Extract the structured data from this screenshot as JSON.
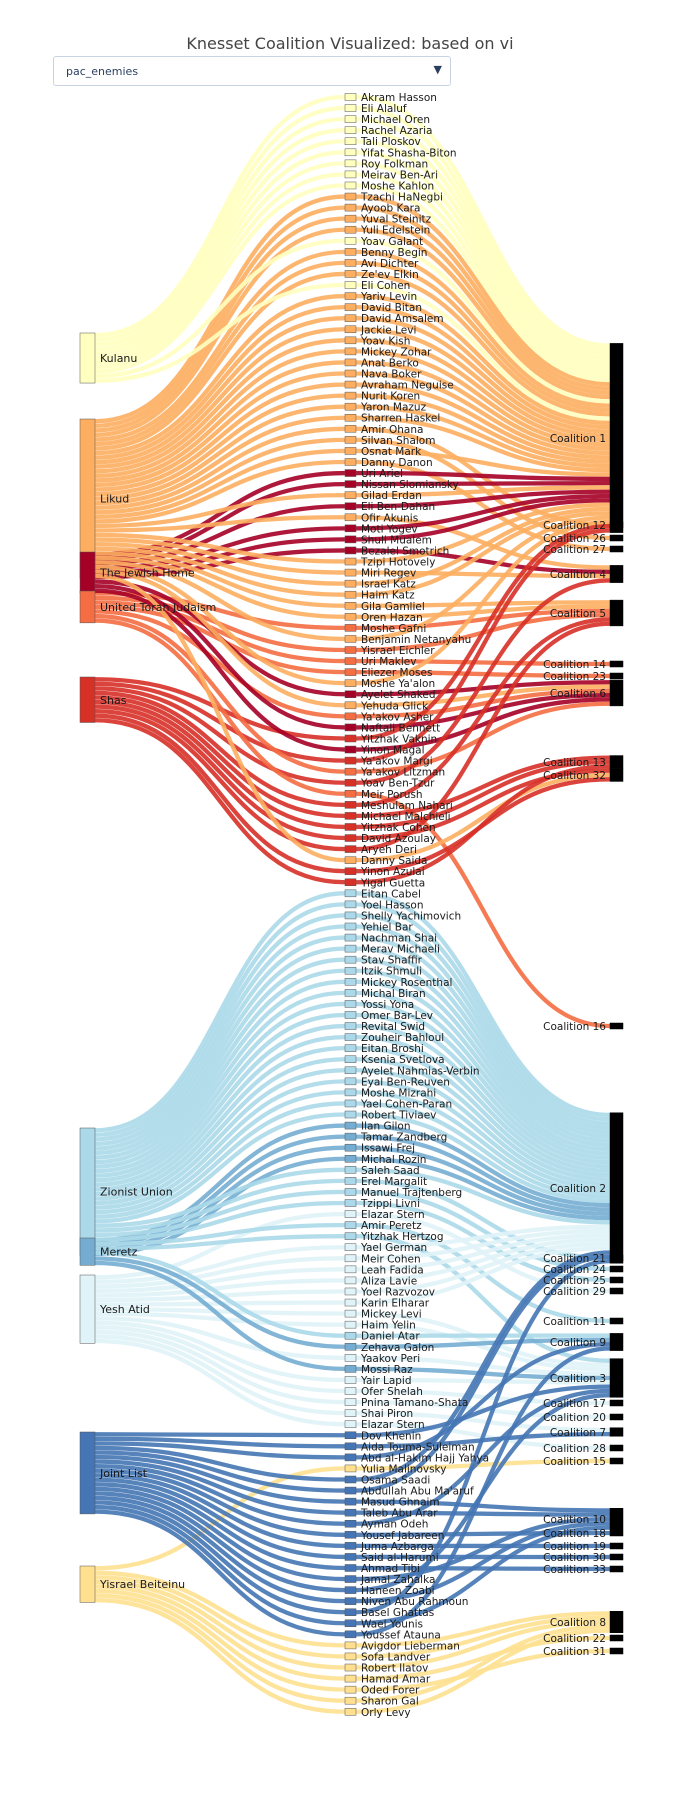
{
  "title": "Knesset Coalition Visualized: based on vi",
  "dropdown": {
    "value": "pac_enemies",
    "arrow": "▼"
  },
  "colors": {
    "Kulanu": "#ffffbf",
    "Likud": "#fdae61",
    "The Jewish Home": "#a50026",
    "United Torah Judaism": "#f46d43",
    "Shas": "#d73027",
    "Zionist Union": "#abd9e9",
    "Meretz": "#74add1",
    "Yesh Atid": "#e0f3f8",
    "Joint List": "#4575b4",
    "Yisrael Beiteinu": "#fee090"
  },
  "parties": [
    "Kulanu",
    "Likud",
    "The Jewish Home",
    "United Torah Judaism",
    "Shas",
    "Zionist Union",
    "Meretz",
    "Yesh Atid",
    "Joint List",
    "Yisrael Beiteinu"
  ],
  "members": [
    {
      "name": "Akram Hasson",
      "party": "Kulanu",
      "coalition": "Coalition 1"
    },
    {
      "name": "Eli Alaluf",
      "party": "Kulanu",
      "coalition": "Coalition 1"
    },
    {
      "name": "Michael Oren",
      "party": "Kulanu",
      "coalition": "Coalition 1"
    },
    {
      "name": "Rachel Azaria",
      "party": "Kulanu",
      "coalition": "Coalition 1"
    },
    {
      "name": "Tali Ploskov",
      "party": "Kulanu",
      "coalition": "Coalition 1"
    },
    {
      "name": "Yifat Shasha-Biton",
      "party": "Kulanu",
      "coalition": "Coalition 1"
    },
    {
      "name": "Roy Folkman",
      "party": "Kulanu",
      "coalition": "Coalition 1"
    },
    {
      "name": "Meirav Ben-Ari",
      "party": "Kulanu",
      "coalition": "Coalition 1"
    },
    {
      "name": "Moshe Kahlon",
      "party": "Kulanu",
      "coalition": "Coalition 1"
    },
    {
      "name": "Tzachi HaNegbi",
      "party": "Likud",
      "coalition": "Coalition 1"
    },
    {
      "name": "Ayoob Kara",
      "party": "Likud",
      "coalition": "Coalition 1"
    },
    {
      "name": "Yuval Steinitz",
      "party": "Likud",
      "coalition": "Coalition 1"
    },
    {
      "name": "Yuli Edelstein",
      "party": "Likud",
      "coalition": "Coalition 1"
    },
    {
      "name": "Yoav Galant",
      "party": "Kulanu",
      "coalition": "Coalition 1"
    },
    {
      "name": "Benny Begin",
      "party": "Likud",
      "coalition": "Coalition 1"
    },
    {
      "name": "Avi Dichter",
      "party": "Likud",
      "coalition": "Coalition 1"
    },
    {
      "name": "Ze'ev Elkin",
      "party": "Likud",
      "coalition": "Coalition 1"
    },
    {
      "name": "Eli Cohen",
      "party": "Kulanu",
      "coalition": "Coalition 1"
    },
    {
      "name": "Yariv Levin",
      "party": "Likud",
      "coalition": "Coalition 1"
    },
    {
      "name": "David Bitan",
      "party": "Likud",
      "coalition": "Coalition 1"
    },
    {
      "name": "David Amsalem",
      "party": "Likud",
      "coalition": "Coalition 1"
    },
    {
      "name": "Jackie Levi",
      "party": "Likud",
      "coalition": "Coalition 1"
    },
    {
      "name": "Yoav Kish",
      "party": "Likud",
      "coalition": "Coalition 1"
    },
    {
      "name": "Mickey Zohar",
      "party": "Likud",
      "coalition": "Coalition 1"
    },
    {
      "name": "Anat Berko",
      "party": "Likud",
      "coalition": "Coalition 1"
    },
    {
      "name": "Nava Boker",
      "party": "Likud",
      "coalition": "Coalition 1"
    },
    {
      "name": "Avraham Neguise",
      "party": "Likud",
      "coalition": "Coalition 1"
    },
    {
      "name": "Nurit Koren",
      "party": "Likud",
      "coalition": "Coalition 1"
    },
    {
      "name": "Yaron Mazuz",
      "party": "Likud",
      "coalition": "Coalition 1"
    },
    {
      "name": "Sharren Haskel",
      "party": "Likud",
      "coalition": "Coalition 1"
    },
    {
      "name": "Amir Ohana",
      "party": "Likud",
      "coalition": "Coalition 12"
    },
    {
      "name": "Silvan Shalom",
      "party": "Likud",
      "coalition": "Coalition 26"
    },
    {
      "name": "Osnat Mark",
      "party": "Likud",
      "coalition": "Coalition 1"
    },
    {
      "name": "Danny Danon",
      "party": "Likud",
      "coalition": "Coalition 27"
    },
    {
      "name": "Uri Ariel",
      "party": "The Jewish Home",
      "coalition": "Coalition 1"
    },
    {
      "name": "Nissan Slomiansky",
      "party": "The Jewish Home",
      "coalition": "Coalition 1"
    },
    {
      "name": "Gilad Erdan",
      "party": "Likud",
      "coalition": "Coalition 1"
    },
    {
      "name": "Eli Ben-Dahan",
      "party": "The Jewish Home",
      "coalition": "Coalition 1"
    },
    {
      "name": "Ofir Akunis",
      "party": "Likud",
      "coalition": "Coalition 4"
    },
    {
      "name": "Moti Yogev",
      "party": "The Jewish Home",
      "coalition": "Coalition 1"
    },
    {
      "name": "Shuli Mualem",
      "party": "The Jewish Home",
      "coalition": "Coalition 1"
    },
    {
      "name": "Bezalel Smotrich",
      "party": "The Jewish Home",
      "coalition": "Coalition 4"
    },
    {
      "name": "Tzipi Hotovely",
      "party": "Likud",
      "coalition": "Coalition 1"
    },
    {
      "name": "Miri Regev",
      "party": "Likud",
      "coalition": "Coalition 4"
    },
    {
      "name": "Israel Katz",
      "party": "Likud",
      "coalition": "Coalition 1"
    },
    {
      "name": "Haim Katz",
      "party": "Likud",
      "coalition": "Coalition 1"
    },
    {
      "name": "Gila Gamliel",
      "party": "Likud",
      "coalition": "Coalition 5"
    },
    {
      "name": "Oren Hazan",
      "party": "Likud",
      "coalition": "Coalition 5"
    },
    {
      "name": "Moshe Gafni",
      "party": "United Torah Judaism",
      "coalition": "Coalition 5"
    },
    {
      "name": "Benjamin Netanyahu",
      "party": "Likud",
      "coalition": "Coalition 1"
    },
    {
      "name": "Yisrael Eichler",
      "party": "United Torah Judaism",
      "coalition": "Coalition 5"
    },
    {
      "name": "Uri Maklev",
      "party": "United Torah Judaism",
      "coalition": "Coalition 14"
    },
    {
      "name": "Eliezer Moses",
      "party": "United Torah Judaism",
      "coalition": "Coalition 23"
    },
    {
      "name": "Moshe Ya'alon",
      "party": "Likud",
      "coalition": "Coalition 1"
    },
    {
      "name": "Ayelet Shaked",
      "party": "The Jewish Home",
      "coalition": "Coalition 6"
    },
    {
      "name": "Yehuda Glick",
      "party": "Likud",
      "coalition": "Coalition 6"
    },
    {
      "name": "Ya'akov Asher",
      "party": "United Torah Judaism",
      "coalition": "Coalition 6"
    },
    {
      "name": "Naftali Bennett",
      "party": "The Jewish Home",
      "coalition": "Coalition 6"
    },
    {
      "name": "Yitzhak Vaknin",
      "party": "Shas",
      "coalition": "Coalition 1"
    },
    {
      "name": "Yinon Magal",
      "party": "The Jewish Home",
      "coalition": "Coalition 6"
    },
    {
      "name": "Ya'akov Margi",
      "party": "Shas",
      "coalition": "Coalition 1"
    },
    {
      "name": "Ya'akov Litzman",
      "party": "United Torah Judaism",
      "coalition": "Coalition 6"
    },
    {
      "name": "Yoav Ben-Tzur",
      "party": "Shas",
      "coalition": "Coalition 4"
    },
    {
      "name": "Meir Porush",
      "party": "United Torah Judaism",
      "coalition": "Coalition 16"
    },
    {
      "name": "Meshulam Nahari",
      "party": "Shas",
      "coalition": "Coalition 5"
    },
    {
      "name": "Michael Malchieli",
      "party": "Shas",
      "coalition": "Coalition 13"
    },
    {
      "name": "Yitzhak Cohen",
      "party": "Shas",
      "coalition": "Coalition 13"
    },
    {
      "name": "David Azoulay",
      "party": "Shas",
      "coalition": "Coalition 32"
    },
    {
      "name": "Aryeh Deri",
      "party": "Shas",
      "coalition": "Coalition 5"
    },
    {
      "name": "Danny Saida",
      "party": "Likud",
      "coalition": "Coalition 32"
    },
    {
      "name": "Yinon Azulai",
      "party": "Shas",
      "coalition": "Coalition 32"
    },
    {
      "name": "Yigal Guetta",
      "party": "Shas",
      "coalition": "Coalition 13"
    },
    {
      "name": "Eitan Cabel",
      "party": "Zionist Union",
      "coalition": "Coalition 2"
    },
    {
      "name": "Yoel Hasson",
      "party": "Zionist Union",
      "coalition": "Coalition 2"
    },
    {
      "name": "Shelly Yachimovich",
      "party": "Zionist Union",
      "coalition": "Coalition 2"
    },
    {
      "name": "Yehiel Bar",
      "party": "Zionist Union",
      "coalition": "Coalition 2"
    },
    {
      "name": "Nachman Shai",
      "party": "Zionist Union",
      "coalition": "Coalition 2"
    },
    {
      "name": "Merav Michaeli",
      "party": "Zionist Union",
      "coalition": "Coalition 2"
    },
    {
      "name": "Stav Shaffir",
      "party": "Zionist Union",
      "coalition": "Coalition 2"
    },
    {
      "name": "Itzik Shmuli",
      "party": "Zionist Union",
      "coalition": "Coalition 2"
    },
    {
      "name": "Mickey Rosenthal",
      "party": "Zionist Union",
      "coalition": "Coalition 2"
    },
    {
      "name": "Michal Biran",
      "party": "Zionist Union",
      "coalition": "Coalition 2"
    },
    {
      "name": "Yossi Yona",
      "party": "Zionist Union",
      "coalition": "Coalition 2"
    },
    {
      "name": "Omer Bar-Lev",
      "party": "Zionist Union",
      "coalition": "Coalition 2"
    },
    {
      "name": "Revital Swid",
      "party": "Zionist Union",
      "coalition": "Coalition 2"
    },
    {
      "name": "Zouheir Bahloul",
      "party": "Zionist Union",
      "coalition": "Coalition 2"
    },
    {
      "name": "Eitan Broshi",
      "party": "Zionist Union",
      "coalition": "Coalition 2"
    },
    {
      "name": "Ksenia Svetlova",
      "party": "Zionist Union",
      "coalition": "Coalition 2"
    },
    {
      "name": "Ayelet Nahmias-Verbin",
      "party": "Zionist Union",
      "coalition": "Coalition 2"
    },
    {
      "name": "Eyal Ben-Reuven",
      "party": "Zionist Union",
      "coalition": "Coalition 2"
    },
    {
      "name": "Moshe Mizrahi",
      "party": "Zionist Union",
      "coalition": "Coalition 2"
    },
    {
      "name": "Yael Cohen-Paran",
      "party": "Zionist Union",
      "coalition": "Coalition 2"
    },
    {
      "name": "Robert Tiviaev",
      "party": "Zionist Union",
      "coalition": "Coalition 2"
    },
    {
      "name": "Ilan Gilon",
      "party": "Meretz",
      "coalition": "Coalition 2"
    },
    {
      "name": "Tamar Zandberg",
      "party": "Meretz",
      "coalition": "Coalition 2"
    },
    {
      "name": "Issawi Frej",
      "party": "Meretz",
      "coalition": "Coalition 2"
    },
    {
      "name": "Michal Rozin",
      "party": "Meretz",
      "coalition": "Coalition 2"
    },
    {
      "name": "Saleh Saad",
      "party": "Zionist Union",
      "coalition": "Coalition 2"
    },
    {
      "name": "Erel Margalit",
      "party": "Zionist Union",
      "coalition": "Coalition 21"
    },
    {
      "name": "Manuel Trajtenberg",
      "party": "Zionist Union",
      "coalition": "Coalition 24"
    },
    {
      "name": "Tzippi Livni",
      "party": "Zionist Union",
      "coalition": "Coalition 25"
    },
    {
      "name": "Elazar Stern",
      "party": "Yesh Atid",
      "coalition": "Coalition 29"
    },
    {
      "name": "Amir Peretz",
      "party": "Zionist Union",
      "coalition": "Coalition 11"
    },
    {
      "name": "Yitzhak Hertzog",
      "party": "Zionist Union",
      "coalition": "Coalition 3"
    },
    {
      "name": "Yael German",
      "party": "Yesh Atid",
      "coalition": "Coalition 2"
    },
    {
      "name": "Meir Cohen",
      "party": "Yesh Atid",
      "coalition": "Coalition 2"
    },
    {
      "name": "Leah Fadida",
      "party": "Yesh Atid",
      "coalition": "Coalition 2"
    },
    {
      "name": "Aliza Lavie",
      "party": "Yesh Atid",
      "coalition": "Coalition 2"
    },
    {
      "name": "Yoel Razvozov",
      "party": "Yesh Atid",
      "coalition": "Coalition 2"
    },
    {
      "name": "Karin Elharar",
      "party": "Yesh Atid",
      "coalition": "Coalition 2"
    },
    {
      "name": "Mickey Levi",
      "party": "Yesh Atid",
      "coalition": "Coalition 3"
    },
    {
      "name": "Haim Yelin",
      "party": "Yesh Atid",
      "coalition": "Coalition 3"
    },
    {
      "name": "Daniel Atar",
      "party": "Zionist Union",
      "coalition": "Coalition 9"
    },
    {
      "name": "Zehava Galon",
      "party": "Meretz",
      "coalition": "Coalition 9"
    },
    {
      "name": "Yaakov Peri",
      "party": "Yesh Atid",
      "coalition": "Coalition 3"
    },
    {
      "name": "Mossi Raz",
      "party": "Meretz",
      "coalition": "Coalition 3"
    },
    {
      "name": "Yair Lapid",
      "party": "Yesh Atid",
      "coalition": "Coalition 3"
    },
    {
      "name": "Ofer Shelah",
      "party": "Yesh Atid",
      "coalition": "Coalition 17"
    },
    {
      "name": "Pnina Tamano-Shata",
      "party": "Yesh Atid",
      "coalition": "Coalition 20"
    },
    {
      "name": "Shai Piron",
      "party": "Yesh Atid",
      "coalition": "Coalition 7"
    },
    {
      "name": "Elazar Stern",
      "party": "Yesh Atid",
      "coalition": "Coalition 28"
    },
    {
      "name": "Dov Khenin",
      "party": "Joint List",
      "coalition": "Coalition 3"
    },
    {
      "name": "Aida Touma-Suleiman",
      "party": "Joint List",
      "coalition": "Coalition 7"
    },
    {
      "name": "Abd al-Hakim Hajj Yahya",
      "party": "Joint List",
      "coalition": "Coalition 9"
    },
    {
      "name": "Yulia Malinovsky",
      "party": "Yisrael Beiteinu",
      "coalition": "Coalition 15"
    },
    {
      "name": "Osama Saadi",
      "party": "Joint List",
      "coalition": "Coalition 2"
    },
    {
      "name": "Abdullah Abu Ma'aruf",
      "party": "Joint List",
      "coalition": "Coalition 2"
    },
    {
      "name": "Masud Ghnaim",
      "party": "Joint List",
      "coalition": "Coalition 10"
    },
    {
      "name": "Taleb Abu Arar",
      "party": "Joint List",
      "coalition": "Coalition 10"
    },
    {
      "name": "Ayman Odeh",
      "party": "Joint List",
      "coalition": "Coalition 3"
    },
    {
      "name": "Yousef Jabareen",
      "party": "Joint List",
      "coalition": "Coalition 18"
    },
    {
      "name": "Juma Azbarga",
      "party": "Joint List",
      "coalition": "Coalition 19"
    },
    {
      "name": "Said al-Harumi",
      "party": "Joint List",
      "coalition": "Coalition 30"
    },
    {
      "name": "Ahmad Tibi",
      "party": "Joint List",
      "coalition": "Coalition 33"
    },
    {
      "name": "Jamal Zahalka",
      "party": "Joint List",
      "coalition": "Coalition 10"
    },
    {
      "name": "Haneen Zoabi",
      "party": "Joint List",
      "coalition": "Coalition 3"
    },
    {
      "name": "Niven Abu Rahmoun",
      "party": "Joint List",
      "coalition": "Coalition 10"
    },
    {
      "name": "Basel Ghattas",
      "party": "Joint List",
      "coalition": "Coalition 2"
    },
    {
      "name": "Wael Younis",
      "party": "Joint List",
      "coalition": "Coalition 10"
    },
    {
      "name": "Youssef Atauna",
      "party": "Joint List",
      "coalition": "Coalition 9"
    },
    {
      "name": "Avigdor Lieberman",
      "party": "Yisrael Beiteinu",
      "coalition": "Coalition 8"
    },
    {
      "name": "Sofa Landver",
      "party": "Yisrael Beiteinu",
      "coalition": "Coalition 8"
    },
    {
      "name": "Robert Ilatov",
      "party": "Yisrael Beiteinu",
      "coalition": "Coalition 8"
    },
    {
      "name": "Hamad Amar",
      "party": "Yisrael Beiteinu",
      "coalition": "Coalition 22"
    },
    {
      "name": "Oded Forer",
      "party": "Yisrael Beiteinu",
      "coalition": "Coalition 31"
    },
    {
      "name": "Sharon Gal",
      "party": "Yisrael Beiteinu",
      "coalition": "Coalition 8"
    },
    {
      "name": "Orly Levy",
      "party": "Yisrael Beiteinu",
      "coalition": "Coalition 8"
    }
  ],
  "coalitions": [
    "Coalition 1",
    "Coalition 12",
    "Coalition 26",
    "Coalition 27",
    "Coalition 4",
    "Coalition 5",
    "Coalition 14",
    "Coalition 23",
    "Coalition 6",
    "Coalition 13",
    "Coalition 32",
    "Coalition 16",
    "Coalition 2",
    "Coalition 21",
    "Coalition 24",
    "Coalition 25",
    "Coalition 29",
    "Coalition 11",
    "Coalition 9",
    "Coalition 3",
    "Coalition 17",
    "Coalition 20",
    "Coalition 7",
    "Coalition 28",
    "Coalition 15",
    "Coalition 10",
    "Coalition 18",
    "Coalition 19",
    "Coalition 30",
    "Coalition 33",
    "Coalition 8",
    "Coalition 22",
    "Coalition 31"
  ]
}
